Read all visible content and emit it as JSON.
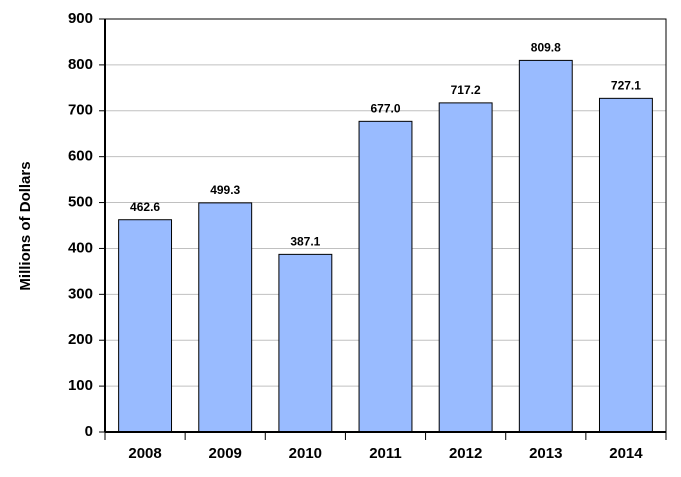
{
  "chart_data": {
    "type": "bar",
    "y_label": "Millions of Dollars",
    "categories": [
      "2008",
      "2009",
      "2010",
      "2011",
      "2012",
      "2013",
      "2014"
    ],
    "values": [
      462.6,
      499.3,
      387.1,
      677.0,
      717.2,
      809.8,
      727.1
    ],
    "value_labels": [
      "462.6",
      "499.3",
      "387.1",
      "677.0",
      "717.2",
      "809.8",
      "727.1"
    ],
    "color": "#99bbff",
    "ylim": [
      0,
      900
    ],
    "yticks": [
      0,
      100,
      200,
      300,
      400,
      500,
      600,
      700,
      800,
      900
    ],
    "grid": true
  }
}
